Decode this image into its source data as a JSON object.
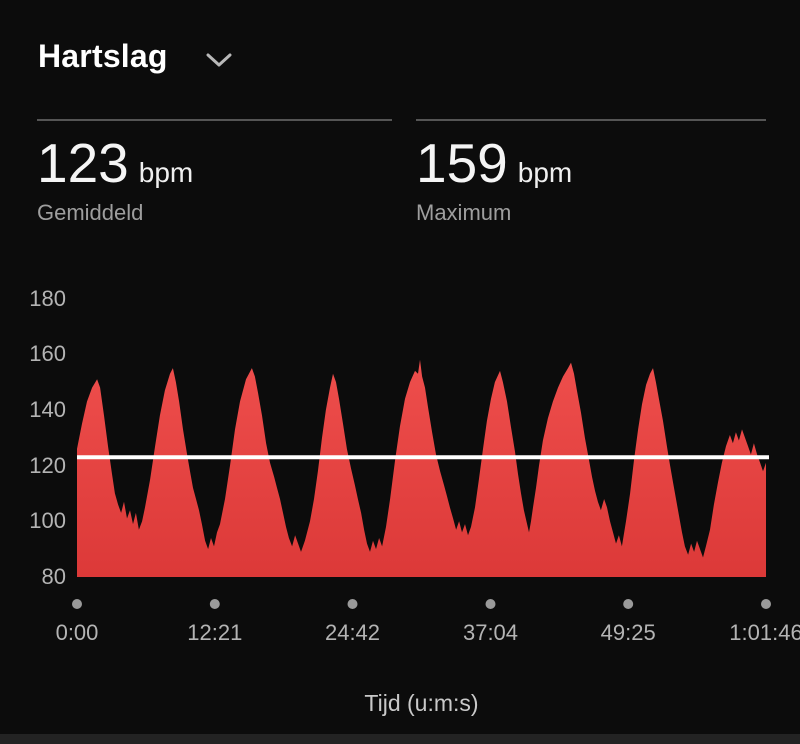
{
  "header": {
    "title": "Hartslag",
    "dropdown_icon": "chevron-down"
  },
  "stats": [
    {
      "value": "123",
      "unit": "bpm",
      "label": "Gemiddeld"
    },
    {
      "value": "159",
      "unit": "bpm",
      "label": "Maximum"
    }
  ],
  "chart_data": {
    "type": "area",
    "title": "Hartslag",
    "xlabel": "Tijd (u:m:s)",
    "ylabel": "bpm",
    "ylim": [
      80,
      180
    ],
    "y_ticks": [
      "180",
      "160",
      "140",
      "120",
      "100",
      "80"
    ],
    "y_tick_values": [
      180,
      160,
      140,
      120,
      100,
      80
    ],
    "x_ticks": [
      "0:00",
      "12:21",
      "24:42",
      "37:04",
      "49:25",
      "1:01:46"
    ],
    "x_tick_seconds": [
      0,
      741,
      1482,
      2224,
      2965,
      3706
    ],
    "duration_seconds": 3706,
    "grid": "off",
    "average_bpm": 123,
    "max_bpm": 159,
    "colors": {
      "area_top": "#ee4e4c",
      "area_bottom": "#dc3938",
      "average_line": "#ffffff",
      "axis_dot": "#9a9a9a"
    },
    "series": [
      {
        "name": "Hartslag (bpm)",
        "points": [
          [
            0,
            126
          ],
          [
            27,
            135
          ],
          [
            54,
            143
          ],
          [
            81,
            148
          ],
          [
            108,
            151
          ],
          [
            124,
            148
          ],
          [
            145,
            138
          ],
          [
            167,
            127
          ],
          [
            188,
            117
          ],
          [
            204,
            110
          ],
          [
            221,
            106
          ],
          [
            237,
            103
          ],
          [
            253,
            107
          ],
          [
            269,
            101
          ],
          [
            285,
            104
          ],
          [
            301,
            99
          ],
          [
            317,
            103
          ],
          [
            333,
            97
          ],
          [
            350,
            100
          ],
          [
            366,
            105
          ],
          [
            393,
            115
          ],
          [
            420,
            127
          ],
          [
            446,
            138
          ],
          [
            473,
            147
          ],
          [
            500,
            153
          ],
          [
            516,
            155
          ],
          [
            532,
            150
          ],
          [
            549,
            143
          ],
          [
            570,
            133
          ],
          [
            592,
            124
          ],
          [
            608,
            118
          ],
          [
            624,
            112
          ],
          [
            640,
            108
          ],
          [
            656,
            104
          ],
          [
            672,
            99
          ],
          [
            689,
            93
          ],
          [
            705,
            90
          ],
          [
            721,
            94
          ],
          [
            737,
            91
          ],
          [
            753,
            96
          ],
          [
            769,
            99
          ],
          [
            796,
            108
          ],
          [
            823,
            120
          ],
          [
            850,
            133
          ],
          [
            877,
            143
          ],
          [
            909,
            151
          ],
          [
            941,
            155
          ],
          [
            957,
            152
          ],
          [
            974,
            146
          ],
          [
            995,
            138
          ],
          [
            1017,
            128
          ],
          [
            1038,
            121
          ],
          [
            1060,
            116
          ],
          [
            1076,
            112
          ],
          [
            1092,
            108
          ],
          [
            1108,
            103
          ],
          [
            1124,
            98
          ],
          [
            1140,
            94
          ],
          [
            1157,
            91
          ],
          [
            1173,
            95
          ],
          [
            1189,
            92
          ],
          [
            1205,
            89
          ],
          [
            1226,
            93
          ],
          [
            1253,
            100
          ],
          [
            1275,
            108
          ],
          [
            1296,
            118
          ],
          [
            1318,
            130
          ],
          [
            1339,
            140
          ],
          [
            1361,
            148
          ],
          [
            1377,
            153
          ],
          [
            1393,
            150
          ],
          [
            1409,
            144
          ],
          [
            1431,
            135
          ],
          [
            1452,
            126
          ],
          [
            1474,
            119
          ],
          [
            1495,
            113
          ],
          [
            1511,
            108
          ],
          [
            1528,
            103
          ],
          [
            1544,
            97
          ],
          [
            1560,
            92
          ],
          [
            1576,
            89
          ],
          [
            1592,
            93
          ],
          [
            1608,
            90
          ],
          [
            1625,
            94
          ],
          [
            1641,
            91
          ],
          [
            1662,
            98
          ],
          [
            1684,
            108
          ],
          [
            1711,
            122
          ],
          [
            1737,
            134
          ],
          [
            1764,
            144
          ],
          [
            1791,
            150
          ],
          [
            1818,
            154
          ],
          [
            1834,
            153
          ],
          [
            1845,
            158
          ],
          [
            1856,
            152
          ],
          [
            1872,
            148
          ],
          [
            1888,
            141
          ],
          [
            1910,
            132
          ],
          [
            1931,
            124
          ],
          [
            1953,
            118
          ],
          [
            1974,
            113
          ],
          [
            1990,
            109
          ],
          [
            2006,
            105
          ],
          [
            2023,
            101
          ],
          [
            2039,
            97
          ],
          [
            2055,
            100
          ],
          [
            2071,
            96
          ],
          [
            2087,
            99
          ],
          [
            2103,
            95
          ],
          [
            2119,
            98
          ],
          [
            2141,
            105
          ],
          [
            2162,
            115
          ],
          [
            2184,
            126
          ],
          [
            2205,
            136
          ],
          [
            2227,
            144
          ],
          [
            2248,
            150
          ],
          [
            2275,
            154
          ],
          [
            2291,
            150
          ],
          [
            2313,
            143
          ],
          [
            2334,
            134
          ],
          [
            2356,
            125
          ],
          [
            2372,
            117
          ],
          [
            2388,
            110
          ],
          [
            2404,
            104
          ],
          [
            2421,
            99
          ],
          [
            2431,
            96
          ],
          [
            2442,
            100
          ],
          [
            2453,
            105
          ],
          [
            2469,
            112
          ],
          [
            2485,
            120
          ],
          [
            2506,
            129
          ],
          [
            2533,
            137
          ],
          [
            2560,
            143
          ],
          [
            2587,
            148
          ],
          [
            2614,
            152
          ],
          [
            2641,
            155
          ],
          [
            2657,
            157
          ],
          [
            2673,
            153
          ],
          [
            2689,
            147
          ],
          [
            2711,
            139
          ],
          [
            2732,
            130
          ],
          [
            2754,
            122
          ],
          [
            2770,
            116
          ],
          [
            2786,
            111
          ],
          [
            2802,
            107
          ],
          [
            2818,
            104
          ],
          [
            2835,
            108
          ],
          [
            2851,
            105
          ],
          [
            2867,
            100
          ],
          [
            2883,
            96
          ],
          [
            2899,
            92
          ],
          [
            2915,
            95
          ],
          [
            2931,
            91
          ],
          [
            2953,
            100
          ],
          [
            2975,
            110
          ],
          [
            2996,
            122
          ],
          [
            3018,
            133
          ],
          [
            3039,
            142
          ],
          [
            3061,
            149
          ],
          [
            3082,
            153
          ],
          [
            3098,
            155
          ],
          [
            3114,
            150
          ],
          [
            3130,
            144
          ],
          [
            3152,
            136
          ],
          [
            3173,
            127
          ],
          [
            3190,
            120
          ],
          [
            3206,
            114
          ],
          [
            3222,
            108
          ],
          [
            3238,
            102
          ],
          [
            3254,
            96
          ],
          [
            3270,
            91
          ],
          [
            3287,
            88
          ],
          [
            3303,
            92
          ],
          [
            3319,
            89
          ],
          [
            3335,
            93
          ],
          [
            3351,
            90
          ],
          [
            3367,
            87
          ],
          [
            3383,
            91
          ],
          [
            3405,
            97
          ],
          [
            3426,
            106
          ],
          [
            3448,
            114
          ],
          [
            3469,
            121
          ],
          [
            3491,
            127
          ],
          [
            3512,
            131
          ],
          [
            3528,
            128
          ],
          [
            3544,
            132
          ],
          [
            3560,
            129
          ],
          [
            3577,
            133
          ],
          [
            3593,
            130
          ],
          [
            3609,
            127
          ],
          [
            3625,
            124
          ],
          [
            3641,
            128
          ],
          [
            3658,
            124
          ],
          [
            3674,
            121
          ],
          [
            3690,
            118
          ],
          [
            3706,
            121
          ]
        ]
      }
    ]
  }
}
